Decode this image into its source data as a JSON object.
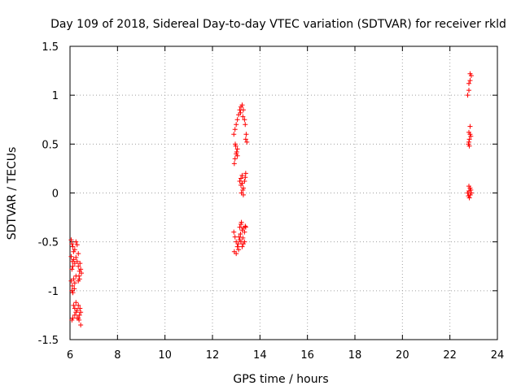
{
  "chart_data": {
    "type": "scatter",
    "title": "Day 109 of 2018, Sidereal Day-to-day VTEC variation (SDTVAR) for receiver rkld",
    "xlabel": "GPS time / hours",
    "ylabel": "SDTVAR / TECUs",
    "xlim": [
      6,
      24
    ],
    "ylim": [
      -1.5,
      1.5
    ],
    "xticks": [
      6,
      8,
      10,
      12,
      14,
      16,
      18,
      20,
      22,
      24
    ],
    "xtick_labels": [
      "6",
      "8",
      "10",
      "12",
      "14",
      "16",
      "18",
      "20",
      "22",
      "24"
    ],
    "yticks": [
      -1.5,
      -1,
      -0.5,
      0,
      0.5,
      1,
      1.5
    ],
    "ytick_labels": [
      "-1.5",
      "-1",
      "-0.5",
      "0",
      "0.5",
      "1",
      "1.5"
    ],
    "grid": true,
    "marker": "+",
    "color": "#ff0000",
    "series": [
      {
        "name": "SDTVAR",
        "points": [
          [
            6.05,
            -0.48
          ],
          [
            6.08,
            -0.52
          ],
          [
            6.12,
            -0.55
          ],
          [
            6.15,
            -0.6
          ],
          [
            6.2,
            -0.58
          ],
          [
            6.25,
            -0.5
          ],
          [
            6.3,
            -0.53
          ],
          [
            6.35,
            -0.62
          ],
          [
            6.05,
            -0.65
          ],
          [
            6.1,
            -0.7
          ],
          [
            6.15,
            -0.68
          ],
          [
            6.2,
            -0.72
          ],
          [
            6.25,
            -0.66
          ],
          [
            6.3,
            -0.7
          ],
          [
            6.08,
            -0.78
          ],
          [
            6.12,
            -0.75
          ],
          [
            6.35,
            -0.75
          ],
          [
            6.4,
            -0.8
          ],
          [
            6.45,
            -0.78
          ],
          [
            6.38,
            -0.85
          ],
          [
            6.42,
            -0.72
          ],
          [
            6.48,
            -0.82
          ],
          [
            6.35,
            -0.9
          ],
          [
            6.4,
            -0.88
          ],
          [
            6.05,
            -0.9
          ],
          [
            6.1,
            -0.95
          ],
          [
            6.15,
            -0.88
          ],
          [
            6.2,
            -0.92
          ],
          [
            6.25,
            -0.85
          ],
          [
            6.08,
            -1.0
          ],
          [
            6.12,
            -1.02
          ],
          [
            6.18,
            -0.98
          ],
          [
            6.15,
            -1.15
          ],
          [
            6.2,
            -1.18
          ],
          [
            6.25,
            -1.22
          ],
          [
            6.3,
            -1.2
          ],
          [
            6.35,
            -1.15
          ],
          [
            6.4,
            -1.25
          ],
          [
            6.45,
            -1.22
          ],
          [
            6.42,
            -1.18
          ],
          [
            6.2,
            -1.25
          ],
          [
            6.3,
            -1.28
          ],
          [
            6.38,
            -1.3
          ],
          [
            6.45,
            -1.35
          ],
          [
            6.08,
            -1.3
          ],
          [
            6.12,
            -1.28
          ],
          [
            6.25,
            -1.12
          ],
          [
            6.35,
            -1.28
          ],
          [
            12.9,
            -0.4
          ],
          [
            12.95,
            -0.45
          ],
          [
            13.0,
            -0.5
          ],
          [
            13.05,
            -0.55
          ],
          [
            13.1,
            -0.58
          ],
          [
            12.92,
            -0.6
          ],
          [
            13.0,
            -0.62
          ],
          [
            13.08,
            -0.52
          ],
          [
            13.15,
            -0.48
          ],
          [
            13.2,
            -0.5
          ],
          [
            13.25,
            -0.55
          ],
          [
            13.3,
            -0.52
          ],
          [
            13.35,
            -0.5
          ],
          [
            13.12,
            -0.45
          ],
          [
            13.18,
            -0.42
          ],
          [
            13.28,
            -0.46
          ],
          [
            13.15,
            -0.35
          ],
          [
            13.2,
            -0.32
          ],
          [
            13.25,
            -0.38
          ],
          [
            13.3,
            -0.36
          ],
          [
            13.35,
            -0.4
          ],
          [
            13.4,
            -0.35
          ],
          [
            13.22,
            -0.3
          ],
          [
            13.38,
            -0.34
          ],
          [
            13.15,
            0.12
          ],
          [
            13.2,
            0.15
          ],
          [
            13.25,
            0.1
          ],
          [
            13.3,
            0.05
          ],
          [
            13.22,
            0.0
          ],
          [
            13.28,
            0.03
          ],
          [
            13.35,
            0.12
          ],
          [
            13.4,
            0.2
          ],
          [
            13.38,
            0.16
          ],
          [
            13.25,
            0.18
          ],
          [
            13.3,
            -0.02
          ],
          [
            13.2,
            0.08
          ],
          [
            12.9,
            0.6
          ],
          [
            12.95,
            0.65
          ],
          [
            13.0,
            0.7
          ],
          [
            13.05,
            0.75
          ],
          [
            13.1,
            0.8
          ],
          [
            13.15,
            0.85
          ],
          [
            13.2,
            0.88
          ],
          [
            13.25,
            0.9
          ],
          [
            13.3,
            0.85
          ],
          [
            13.35,
            0.75
          ],
          [
            13.38,
            0.7
          ],
          [
            13.42,
            0.6
          ],
          [
            13.4,
            0.55
          ],
          [
            13.45,
            0.52
          ],
          [
            13.28,
            0.78
          ],
          [
            13.18,
            0.82
          ],
          [
            12.92,
            0.3
          ],
          [
            12.95,
            0.35
          ],
          [
            13.0,
            0.4
          ],
          [
            13.05,
            0.45
          ],
          [
            12.98,
            0.48
          ],
          [
            13.02,
            0.42
          ],
          [
            12.96,
            0.5
          ],
          [
            13.05,
            0.38
          ],
          [
            22.75,
            1.0
          ],
          [
            22.8,
            1.05
          ],
          [
            22.85,
            1.15
          ],
          [
            22.9,
            1.2
          ],
          [
            22.85,
            1.22
          ],
          [
            22.8,
            1.12
          ],
          [
            22.78,
            0.5
          ],
          [
            22.82,
            0.55
          ],
          [
            22.85,
            0.6
          ],
          [
            22.8,
            0.52
          ],
          [
            22.88,
            0.58
          ],
          [
            22.85,
            0.68
          ],
          [
            22.8,
            0.62
          ],
          [
            22.82,
            0.48
          ],
          [
            22.75,
            0.0
          ],
          [
            22.8,
            0.02
          ],
          [
            22.85,
            0.05
          ],
          [
            22.9,
            0.0
          ],
          [
            22.78,
            -0.03
          ],
          [
            22.82,
            -0.05
          ],
          [
            22.88,
            0.03
          ],
          [
            22.8,
            0.07
          ],
          [
            22.86,
            -0.02
          ]
        ]
      }
    ]
  }
}
